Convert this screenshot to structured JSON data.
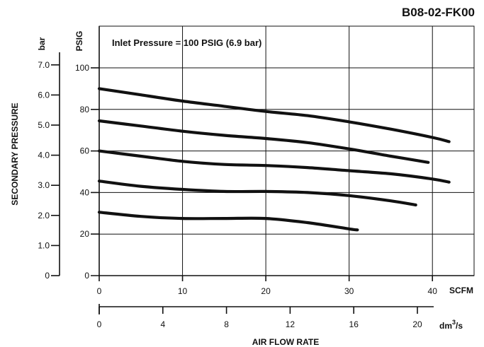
{
  "chart_data": {
    "type": "line",
    "code": "B08-02-FK00",
    "annotation": "Inlet Pressure = 100 PSIG (6.9 bar)",
    "ylabel": "SECONDARY PRESSURE",
    "xlabel": "AIR FLOW RATE",
    "y_axes": [
      {
        "unit": "PSIG",
        "ticks": [
          "20",
          "40",
          "60",
          "80",
          "100"
        ],
        "values": [
          20,
          40,
          60,
          80,
          100
        ]
      },
      {
        "unit": "bar",
        "ticks": [
          "0",
          "1.0",
          "2.0",
          "3.0",
          "4.0",
          "5.0",
          "6.0",
          "7.0"
        ],
        "values": [
          0,
          1,
          2,
          3,
          4,
          5,
          6,
          7
        ]
      }
    ],
    "x_axes": [
      {
        "unit": "SCFM",
        "ticks": [
          "0",
          "10",
          "20",
          "30",
          "40"
        ],
        "values": [
          0,
          10,
          20,
          30,
          40
        ]
      },
      {
        "unit": "dm³/s",
        "ticks": [
          "0",
          "4",
          "8",
          "12",
          "16",
          "20"
        ],
        "values": [
          0,
          4,
          8,
          12,
          16,
          20
        ]
      }
    ],
    "xlim": [
      0,
      45
    ],
    "ylim": [
      0,
      100
    ],
    "grid": true,
    "series": [
      {
        "x": [
          0,
          5,
          10,
          15,
          20,
          25,
          30,
          35,
          40,
          42
        ],
        "y": [
          90,
          87,
          84,
          81.5,
          79,
          77,
          74,
          70.5,
          66.5,
          64.5
        ]
      },
      {
        "x": [
          0,
          5,
          10,
          15,
          20,
          25,
          30,
          35,
          39.5
        ],
        "y": [
          74.5,
          72,
          69.5,
          67.5,
          66,
          64,
          61,
          57.5,
          54.5
        ]
      },
      {
        "x": [
          0,
          5,
          10,
          15,
          20,
          25,
          30,
          35,
          40,
          42
        ],
        "y": [
          60,
          57.5,
          55,
          53.5,
          53,
          52,
          50.5,
          49,
          46.5,
          45
        ]
      },
      {
        "x": [
          0,
          5,
          10,
          15,
          20,
          25,
          30,
          35,
          38
        ],
        "y": [
          45.5,
          43,
          41.5,
          40.5,
          40.5,
          40,
          38.5,
          36,
          34
        ]
      },
      {
        "x": [
          0,
          5,
          10,
          15,
          20,
          25,
          30,
          31
        ],
        "y": [
          30.5,
          28.5,
          27.5,
          27.5,
          27.5,
          25.5,
          22.5,
          22
        ]
      }
    ]
  }
}
